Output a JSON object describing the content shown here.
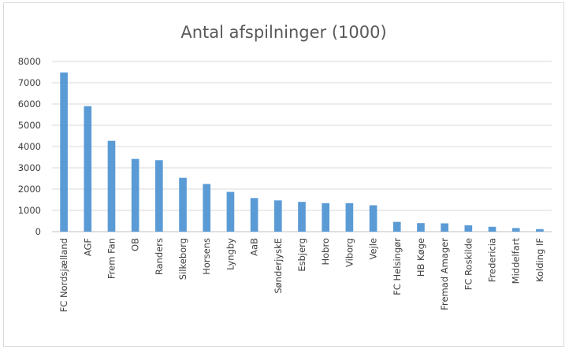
{
  "chart_data": {
    "type": "bar",
    "title": "Antal afspilninger (1000)",
    "xlabel": "",
    "ylabel": "",
    "ylim": [
      0,
      8000
    ],
    "yticks": [
      "0",
      "1000",
      "2000",
      "3000",
      "4000",
      "5000",
      "6000",
      "7000",
      "8000"
    ],
    "grid": true,
    "legend": "none",
    "bar_color": "#5b9bd5",
    "categories": [
      "FC Nordsjælland",
      "AGF",
      "Frem Fan",
      "OB",
      "Randers",
      "Silkeborg",
      "Horsens",
      "Lyngby",
      "AaB",
      "SønderjyskE",
      "Esbjerg",
      "Hobro",
      "Viborg",
      "Vejle",
      "FC Helsingør",
      "HB Køge",
      "Fremad Amager",
      "FC Roskilde",
      "Fredericia",
      "Middelfart",
      "Kolding IF"
    ],
    "values": [
      7480,
      5900,
      4270,
      3420,
      3360,
      2530,
      2240,
      1870,
      1580,
      1470,
      1400,
      1340,
      1340,
      1240,
      460,
      400,
      390,
      300,
      230,
      170,
      120
    ]
  }
}
